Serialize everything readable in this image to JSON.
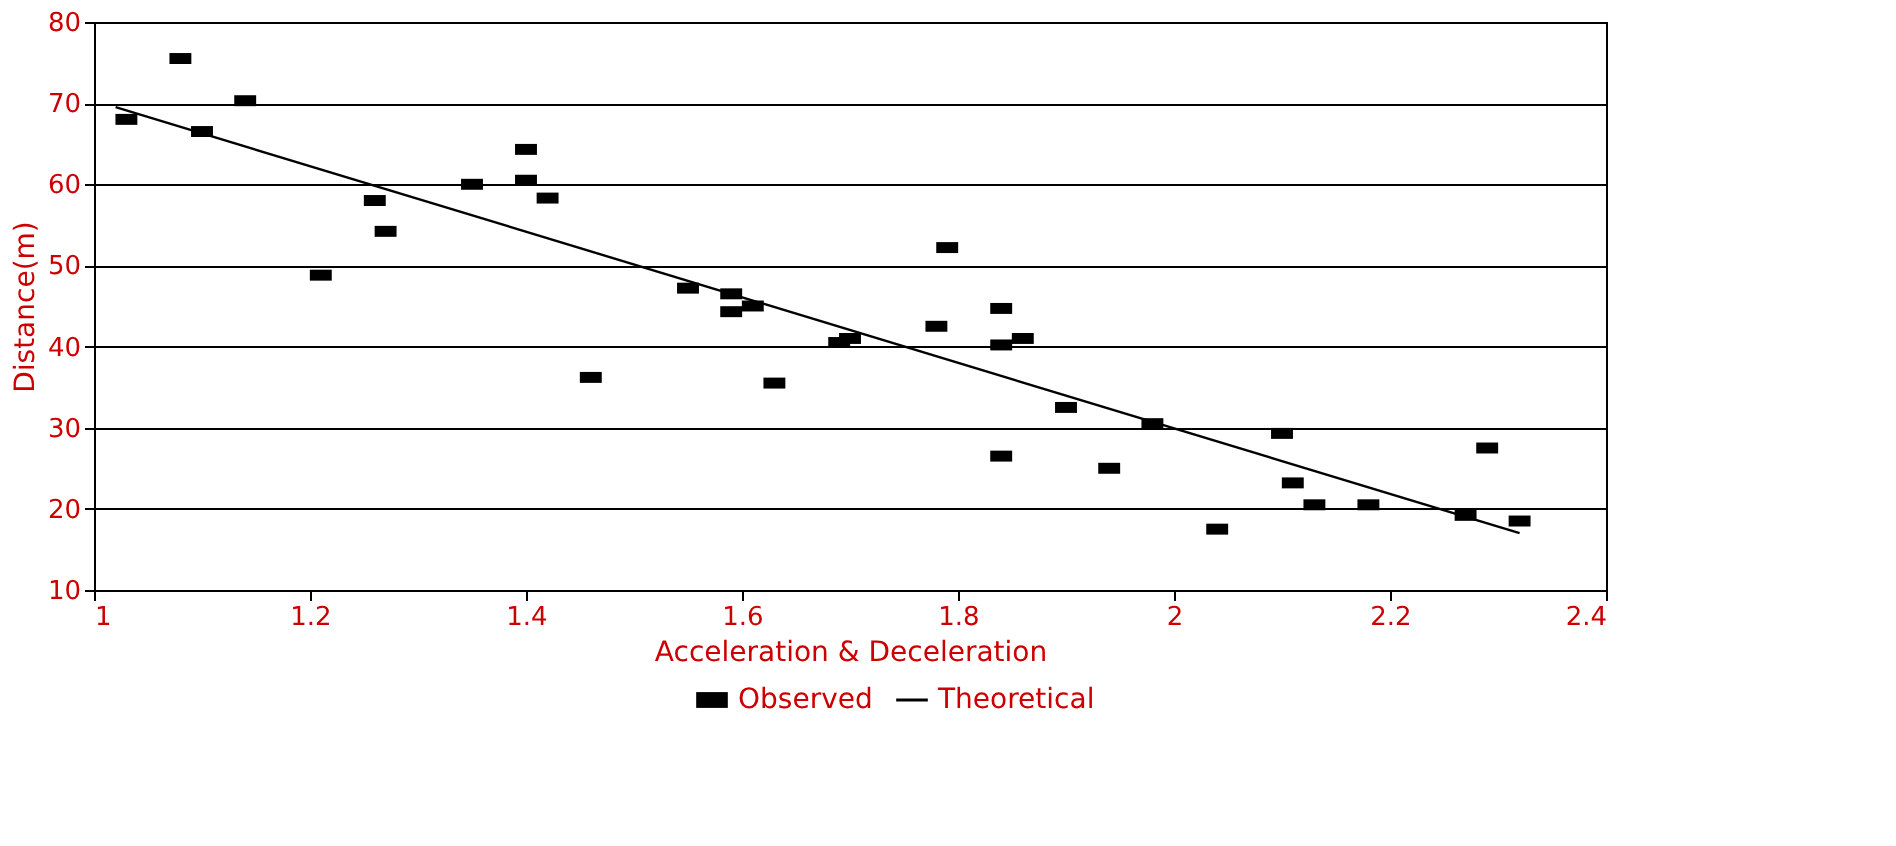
{
  "chart_data": {
    "type": "scatter",
    "xlabel": "Acceleration & Deceleration",
    "ylabel": "Distance(m)",
    "xlim": [
      1,
      2.4
    ],
    "xticks": [
      1,
      1.2,
      1.4,
      1.6,
      1.8,
      2,
      2.2,
      2.4
    ],
    "ylim": [
      10,
      80
    ],
    "yticks": [
      10,
      20,
      30,
      40,
      50,
      60,
      70,
      80
    ],
    "grid": "y",
    "legend": "bottom",
    "series": [
      {
        "name": "Observed",
        "marker": "square",
        "color": "#000000",
        "x": [
          1.03,
          1.08,
          1.1,
          1.14,
          1.21,
          1.26,
          1.27,
          1.35,
          1.4,
          1.4,
          1.42,
          1.46,
          1.55,
          1.59,
          1.59,
          1.61,
          1.63,
          1.69,
          1.7,
          1.78,
          1.79,
          1.84,
          1.84,
          1.84,
          1.86,
          1.9,
          1.94,
          1.98,
          2.04,
          2.1,
          2.11,
          2.13,
          2.18,
          2.27,
          2.29,
          2.32
        ],
        "values": [
          68,
          75.5,
          66.5,
          70.3,
          48.8,
          58,
          54.2,
          60,
          64.3,
          60.5,
          58.3,
          36.2,
          47.2,
          46.5,
          44.3,
          45,
          35.5,
          40.5,
          41,
          42.5,
          52.2,
          44.7,
          40.2,
          26.5,
          41,
          32.5,
          25,
          30.5,
          17.5,
          29.3,
          23.2,
          20.5,
          20.5,
          19.2,
          27.5,
          18.5
        ]
      },
      {
        "name": "Theoretical",
        "type": "line",
        "line_style": "solid",
        "marker": "none",
        "color": "#000000",
        "x": [
          1.02,
          2.32
        ],
        "values": [
          69.5,
          17
        ]
      }
    ]
  }
}
